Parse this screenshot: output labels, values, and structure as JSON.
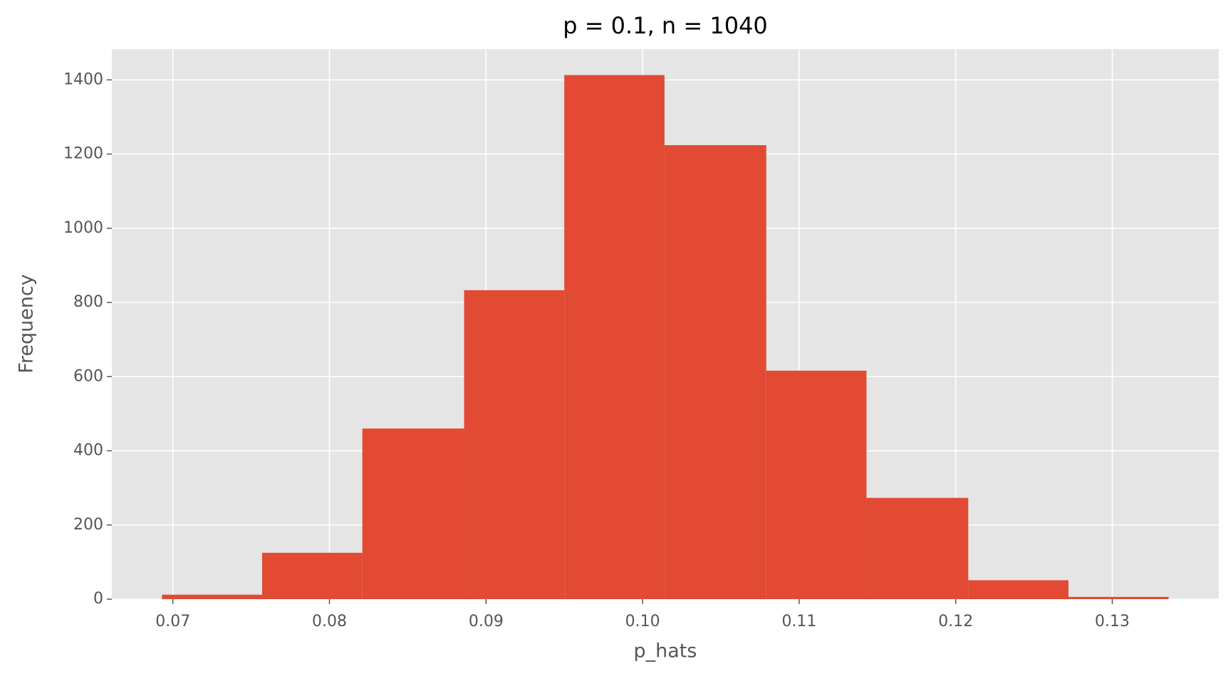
{
  "chart_data": {
    "type": "histogram",
    "title": "p = 0.1, n = 1040",
    "x_label": "p_hats",
    "y_label": "Frequency",
    "bins": [
      0.0693,
      0.0757,
      0.0821,
      0.0886,
      0.095,
      0.1014,
      0.1079,
      0.1143,
      0.1208,
      0.1272,
      0.1336
    ],
    "counts": [
      12,
      125,
      460,
      833,
      1413,
      1224,
      616,
      273,
      51,
      6
    ],
    "color": "#e24a33",
    "xlim": [
      0.0661,
      0.1368
    ],
    "xticks": [
      0.07,
      0.08,
      0.09,
      {
        "value": 0.1,
        "label": "0.10"
      },
      0.11,
      0.12,
      0.13
    ],
    "ylim": [
      0,
      1483
    ],
    "yticks": [
      0,
      200,
      400,
      600,
      800,
      1000,
      1200,
      1400
    ],
    "grid": true
  }
}
